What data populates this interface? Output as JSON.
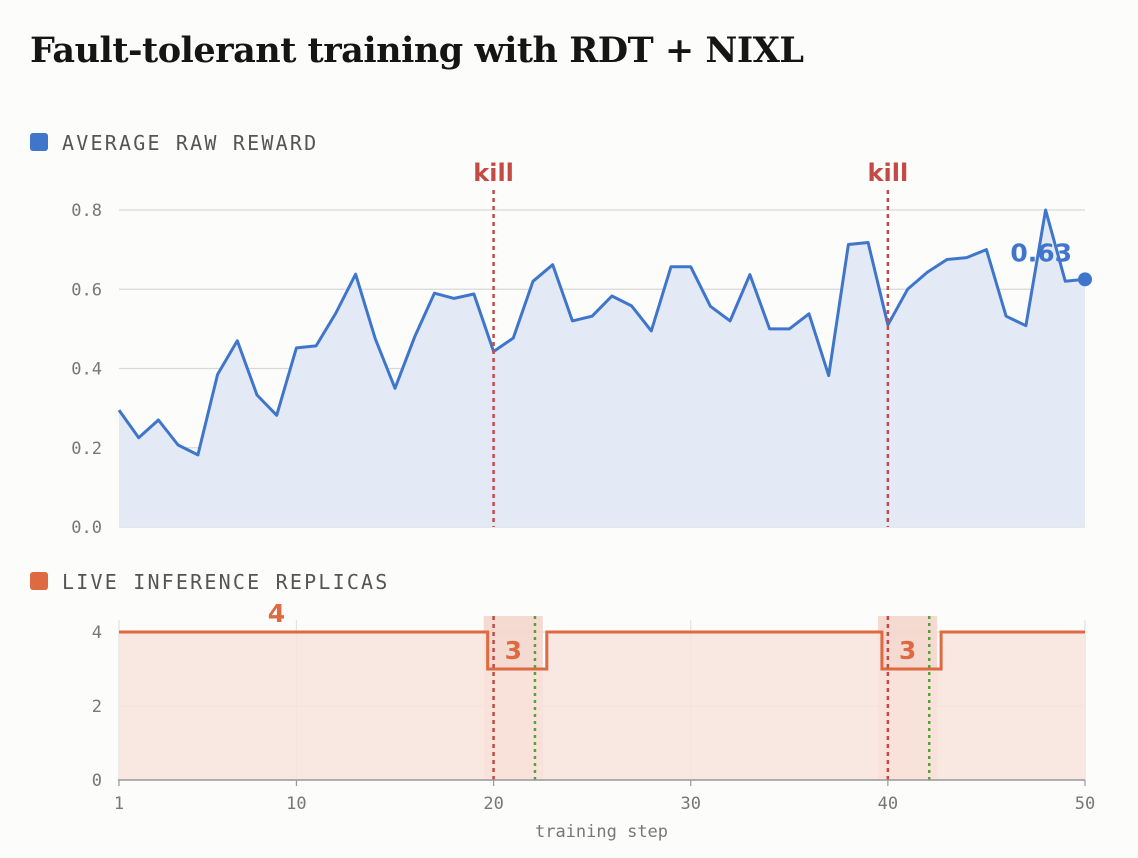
{
  "title": "Fault-tolerant training with RDT + NIXL",
  "colors": {
    "reward": "#3f76cc",
    "reward_fill": "#e4eaf5",
    "replicas": "#dd6a40",
    "replicas_fill": "#f8e3dc",
    "kill": "#c44a45",
    "recover": "#56a23a",
    "grid": "#d9d9d9",
    "axis": "#777777"
  },
  "chart_data": [
    {
      "type": "area",
      "legend": "AVERAGE RAW REWARD",
      "xlim": [
        1,
        50
      ],
      "ylim": [
        0,
        0.8
      ],
      "yticks": [
        "0.0",
        "0.2",
        "0.4",
        "0.6",
        "0.8"
      ],
      "x": [
        1,
        2,
        3,
        4,
        5,
        6,
        7,
        8,
        9,
        10,
        11,
        12,
        13,
        14,
        15,
        16,
        17,
        18,
        19,
        20,
        21,
        22,
        23,
        24,
        25,
        26,
        27,
        28,
        29,
        30,
        31,
        32,
        33,
        34,
        35,
        36,
        37,
        38,
        39,
        40,
        41,
        42,
        43,
        44,
        45,
        46,
        47,
        48,
        49,
        50
      ],
      "values": [
        0.295,
        0.225,
        0.27,
        0.207,
        0.182,
        0.385,
        0.47,
        0.333,
        0.282,
        0.452,
        0.457,
        0.54,
        0.638,
        0.475,
        0.35,
        0.48,
        0.59,
        0.577,
        0.588,
        0.443,
        0.477,
        0.62,
        0.662,
        0.52,
        0.532,
        0.583,
        0.558,
        0.495,
        0.657,
        0.657,
        0.557,
        0.52,
        0.637,
        0.5,
        0.5,
        0.538,
        0.382,
        0.713,
        0.718,
        0.51,
        0.6,
        0.643,
        0.675,
        0.68,
        0.7,
        0.532,
        0.508,
        0.8,
        0.62,
        0.625
      ],
      "last_value_label": "0.63",
      "annotations": [
        {
          "x": 20,
          "label": "kill"
        },
        {
          "x": 40,
          "label": "kill"
        }
      ]
    },
    {
      "type": "area",
      "legend": "LIVE INFERENCE REPLICAS",
      "xlim": [
        1,
        50
      ],
      "ylim": [
        0,
        4
      ],
      "xlabel": "training step",
      "xticks": [
        1,
        10,
        20,
        30,
        40,
        50
      ],
      "yticks": [
        0,
        2,
        4
      ],
      "steps": [
        {
          "x0": 1,
          "x1": 19.7,
          "value": 4
        },
        {
          "x0": 19.7,
          "x1": 22.7,
          "value": 3
        },
        {
          "x0": 22.7,
          "x1": 39.7,
          "value": 4
        },
        {
          "x0": 39.7,
          "x1": 42.7,
          "value": 3
        },
        {
          "x0": 42.7,
          "x1": 50,
          "value": 4
        }
      ],
      "labels": [
        {
          "x": 10,
          "text": "4"
        },
        {
          "x": 21,
          "text": "3"
        },
        {
          "x": 41,
          "text": "3"
        }
      ],
      "kill_x": [
        20,
        40
      ],
      "recover_x": [
        22.1,
        42.1
      ],
      "degraded_bands": [
        [
          19.5,
          22.5
        ],
        [
          39.5,
          42.5
        ]
      ]
    }
  ]
}
